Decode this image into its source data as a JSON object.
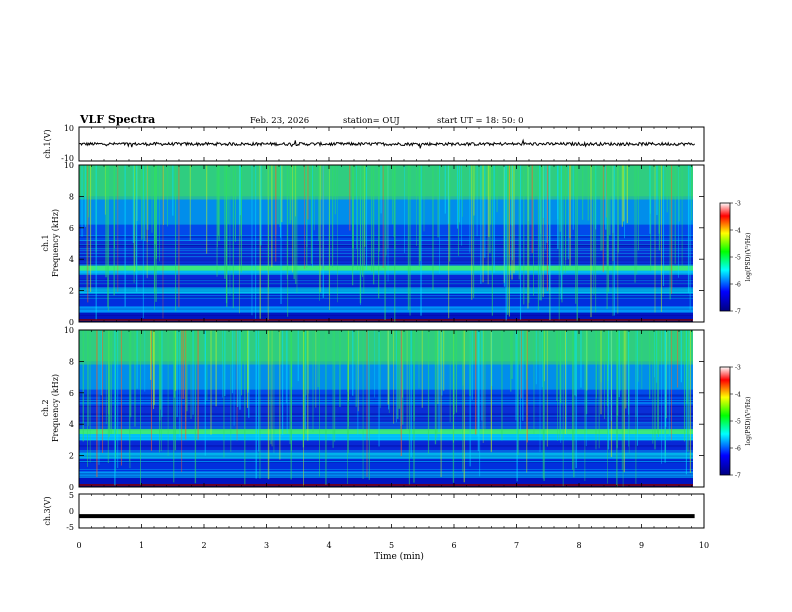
{
  "header": {
    "title": "VLF Spectra",
    "date": "Feb. 23, 2026",
    "station": "station= OUJ",
    "start": "start  UT  =  18: 50: 0"
  },
  "colors": {
    "waveform": "#000000",
    "spectrogram_colormap": [
      "#000080",
      "#0000ff",
      "#00ffff",
      "#00ff00",
      "#ffff00",
      "#ff0000",
      "#ffffff"
    ]
  },
  "chart_data": [
    {
      "type": "line",
      "name": "ch1-waveform",
      "ylabel": "ch.1(V)",
      "ylim": [
        -10,
        10
      ],
      "yticks": [
        "10",
        "-10"
      ],
      "x": [
        0,
        9.85
      ],
      "y_level": 0,
      "trace": "noisy waveform centered near 0 V spanning the full time range"
    },
    {
      "type": "heatmap",
      "name": "ch1-spectrogram",
      "ylabel": "ch.1 Frequency (kHz)",
      "ylim": [
        0,
        10
      ],
      "yticks": [
        "0",
        "2",
        "4",
        "6",
        "8",
        "10"
      ],
      "colorbar": {
        "label": "log(PSD)(V²/Hz)",
        "range": [
          -7,
          -3
        ],
        "ticks": [
          "-3",
          "-4",
          "-5",
          "-6",
          "-7"
        ]
      }
    },
    {
      "type": "heatmap",
      "name": "ch2-spectrogram",
      "ylabel": "ch.2 Frequency (kHz)",
      "ylim": [
        0,
        10
      ],
      "yticks": [
        "0",
        "2",
        "4",
        "6",
        "8",
        "10"
      ],
      "colorbar": {
        "label": "log(PSD)(V²/Hz)",
        "range": [
          -7,
          -3
        ],
        "ticks": [
          "-3",
          "-4",
          "-5",
          "-6",
          "-7"
        ]
      }
    },
    {
      "type": "line",
      "name": "ch3-waveform",
      "ylabel": "ch.3(V)",
      "ylim": [
        -5,
        5
      ],
      "yticks": [
        "5",
        "0",
        "-5"
      ],
      "x": [
        0,
        9.85
      ],
      "y_level": -1.5,
      "trace": "thick flat line near -1.5 V"
    }
  ],
  "xaxis": {
    "label": "Time  (min)",
    "range": [
      0,
      10
    ],
    "ticks": [
      "0",
      "1",
      "2",
      "3",
      "4",
      "5",
      "6",
      "7",
      "8",
      "9",
      "10"
    ]
  }
}
